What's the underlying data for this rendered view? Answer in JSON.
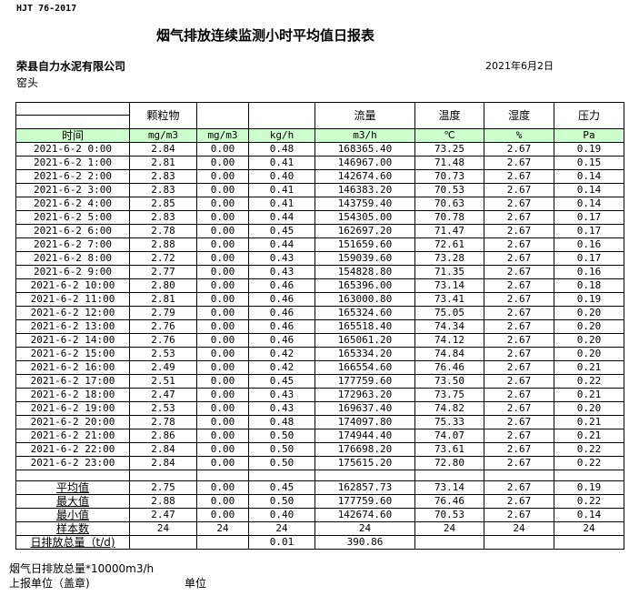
{
  "header": {
    "standard": "HJT  76-2017",
    "title": "烟气排放连续监测小时平均值日报表",
    "company": "荣县自力水泥有限公司",
    "source": "窑头",
    "date": "2021年6月2日"
  },
  "columns": [
    "",
    "颗粒物",
    "",
    "",
    "流量",
    "温度",
    "湿度",
    "压力"
  ],
  "units": [
    "时间",
    "mg/m3",
    "mg/m3",
    "kg/h",
    "m3/h",
    "℃",
    "%",
    "Pa"
  ],
  "rows": [
    [
      "2021-6-2 0:00",
      "2.84",
      "0.00",
      "0.48",
      "168365.40",
      "73.25",
      "2.67",
      "0.19"
    ],
    [
      "2021-6-2 1:00",
      "2.81",
      "0.00",
      "0.41",
      "146967.00",
      "71.48",
      "2.67",
      "0.15"
    ],
    [
      "2021-6-2 2:00",
      "2.83",
      "0.00",
      "0.40",
      "142674.60",
      "70.73",
      "2.67",
      "0.14"
    ],
    [
      "2021-6-2 3:00",
      "2.83",
      "0.00",
      "0.41",
      "146383.20",
      "70.53",
      "2.67",
      "0.14"
    ],
    [
      "2021-6-2 4:00",
      "2.85",
      "0.00",
      "0.41",
      "143759.40",
      "70.63",
      "2.67",
      "0.14"
    ],
    [
      "2021-6-2 5:00",
      "2.83",
      "0.00",
      "0.44",
      "154305.00",
      "70.78",
      "2.67",
      "0.17"
    ],
    [
      "2021-6-2 6:00",
      "2.78",
      "0.00",
      "0.45",
      "162697.20",
      "71.47",
      "2.67",
      "0.17"
    ],
    [
      "2021-6-2 7:00",
      "2.88",
      "0.00",
      "0.44",
      "151659.60",
      "72.61",
      "2.67",
      "0.16"
    ],
    [
      "2021-6-2 8:00",
      "2.72",
      "0.00",
      "0.43",
      "159039.60",
      "73.28",
      "2.67",
      "0.17"
    ],
    [
      "2021-6-2 9:00",
      "2.77",
      "0.00",
      "0.43",
      "154828.80",
      "71.35",
      "2.67",
      "0.16"
    ],
    [
      "2021-6-2 10:00",
      "2.80",
      "0.00",
      "0.46",
      "165396.00",
      "73.14",
      "2.67",
      "0.18"
    ],
    [
      "2021-6-2 11:00",
      "2.81",
      "0.00",
      "0.46",
      "163000.80",
      "73.41",
      "2.67",
      "0.19"
    ],
    [
      "2021-6-2 12:00",
      "2.79",
      "0.00",
      "0.46",
      "165324.60",
      "75.05",
      "2.67",
      "0.20"
    ],
    [
      "2021-6-2 13:00",
      "2.76",
      "0.00",
      "0.46",
      "165518.40",
      "74.34",
      "2.67",
      "0.20"
    ],
    [
      "2021-6-2 14:00",
      "2.76",
      "0.00",
      "0.46",
      "165061.20",
      "74.12",
      "2.67",
      "0.20"
    ],
    [
      "2021-6-2 15:00",
      "2.53",
      "0.00",
      "0.42",
      "165334.20",
      "74.84",
      "2.67",
      "0.20"
    ],
    [
      "2021-6-2 16:00",
      "2.49",
      "0.00",
      "0.42",
      "166554.60",
      "76.46",
      "2.67",
      "0.21"
    ],
    [
      "2021-6-2 17:00",
      "2.51",
      "0.00",
      "0.45",
      "177759.60",
      "73.50",
      "2.67",
      "0.22"
    ],
    [
      "2021-6-2 18:00",
      "2.47",
      "0.00",
      "0.43",
      "172963.20",
      "73.75",
      "2.67",
      "0.21"
    ],
    [
      "2021-6-2 19:00",
      "2.53",
      "0.00",
      "0.43",
      "169637.40",
      "74.82",
      "2.67",
      "0.20"
    ],
    [
      "2021-6-2 20:00",
      "2.78",
      "0.00",
      "0.48",
      "174097.80",
      "75.33",
      "2.67",
      "0.21"
    ],
    [
      "2021-6-2 21:00",
      "2.86",
      "0.00",
      "0.50",
      "174944.40",
      "74.07",
      "2.67",
      "0.21"
    ],
    [
      "2021-6-2 22:00",
      "2.84",
      "0.00",
      "0.50",
      "176698.20",
      "73.61",
      "2.67",
      "0.22"
    ],
    [
      "2021-6-2 23:00",
      "2.84",
      "0.00",
      "0.50",
      "175615.20",
      "72.80",
      "2.67",
      "0.22"
    ]
  ],
  "summary": [
    [
      "平均值",
      "2.75",
      "0.00",
      "0.45",
      "162857.73",
      "73.14",
      "2.67",
      "0.19"
    ],
    [
      "最大值",
      "2.88",
      "0.00",
      "0.50",
      "177759.60",
      "76.46",
      "2.67",
      "0.22"
    ],
    [
      "最小值",
      "2.47",
      "0.00",
      "0.40",
      "142674.60",
      "70.53",
      "2.67",
      "0.14"
    ],
    [
      "样本数",
      "24",
      "24",
      "24",
      "24",
      "24",
      "24",
      "24"
    ],
    [
      "日排放总量（t/d)",
      "",
      "",
      "0.01",
      "390.86",
      "",
      "",
      ""
    ]
  ],
  "footer": {
    "note": "烟气日排放总量*10000m3/h",
    "stamp": "上报单位（盖章)",
    "unit_label": "单位"
  },
  "colors": {
    "unit_row_bg": "#ccffcc"
  }
}
